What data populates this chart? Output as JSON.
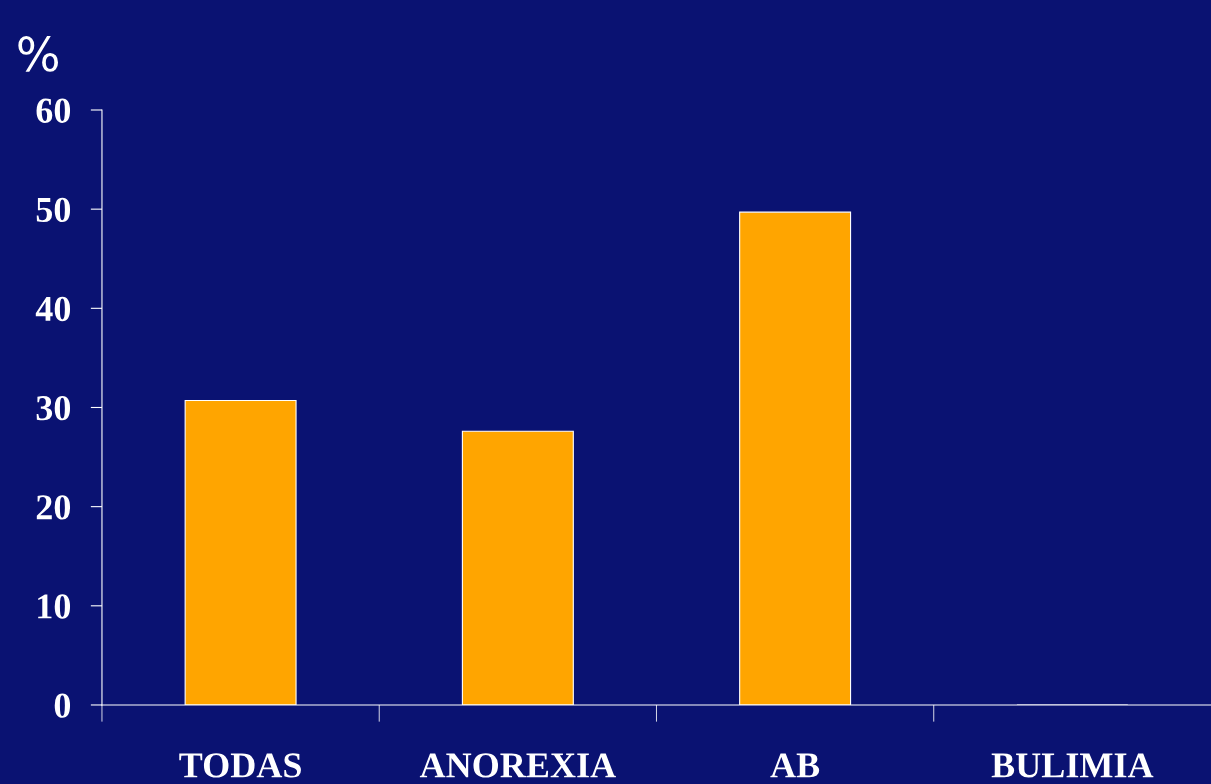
{
  "chart_data": {
    "type": "bar",
    "ylabel": "%",
    "categories": [
      "TODAS",
      "ANOREXIA",
      "AB",
      "BULIMIA"
    ],
    "values": [
      30.7,
      27.6,
      49.7,
      0
    ],
    "color": "#ffa500",
    "ylim": [
      0,
      60
    ],
    "yticks": [
      0,
      10,
      20,
      30,
      40,
      50,
      60
    ],
    "grid": false
  }
}
